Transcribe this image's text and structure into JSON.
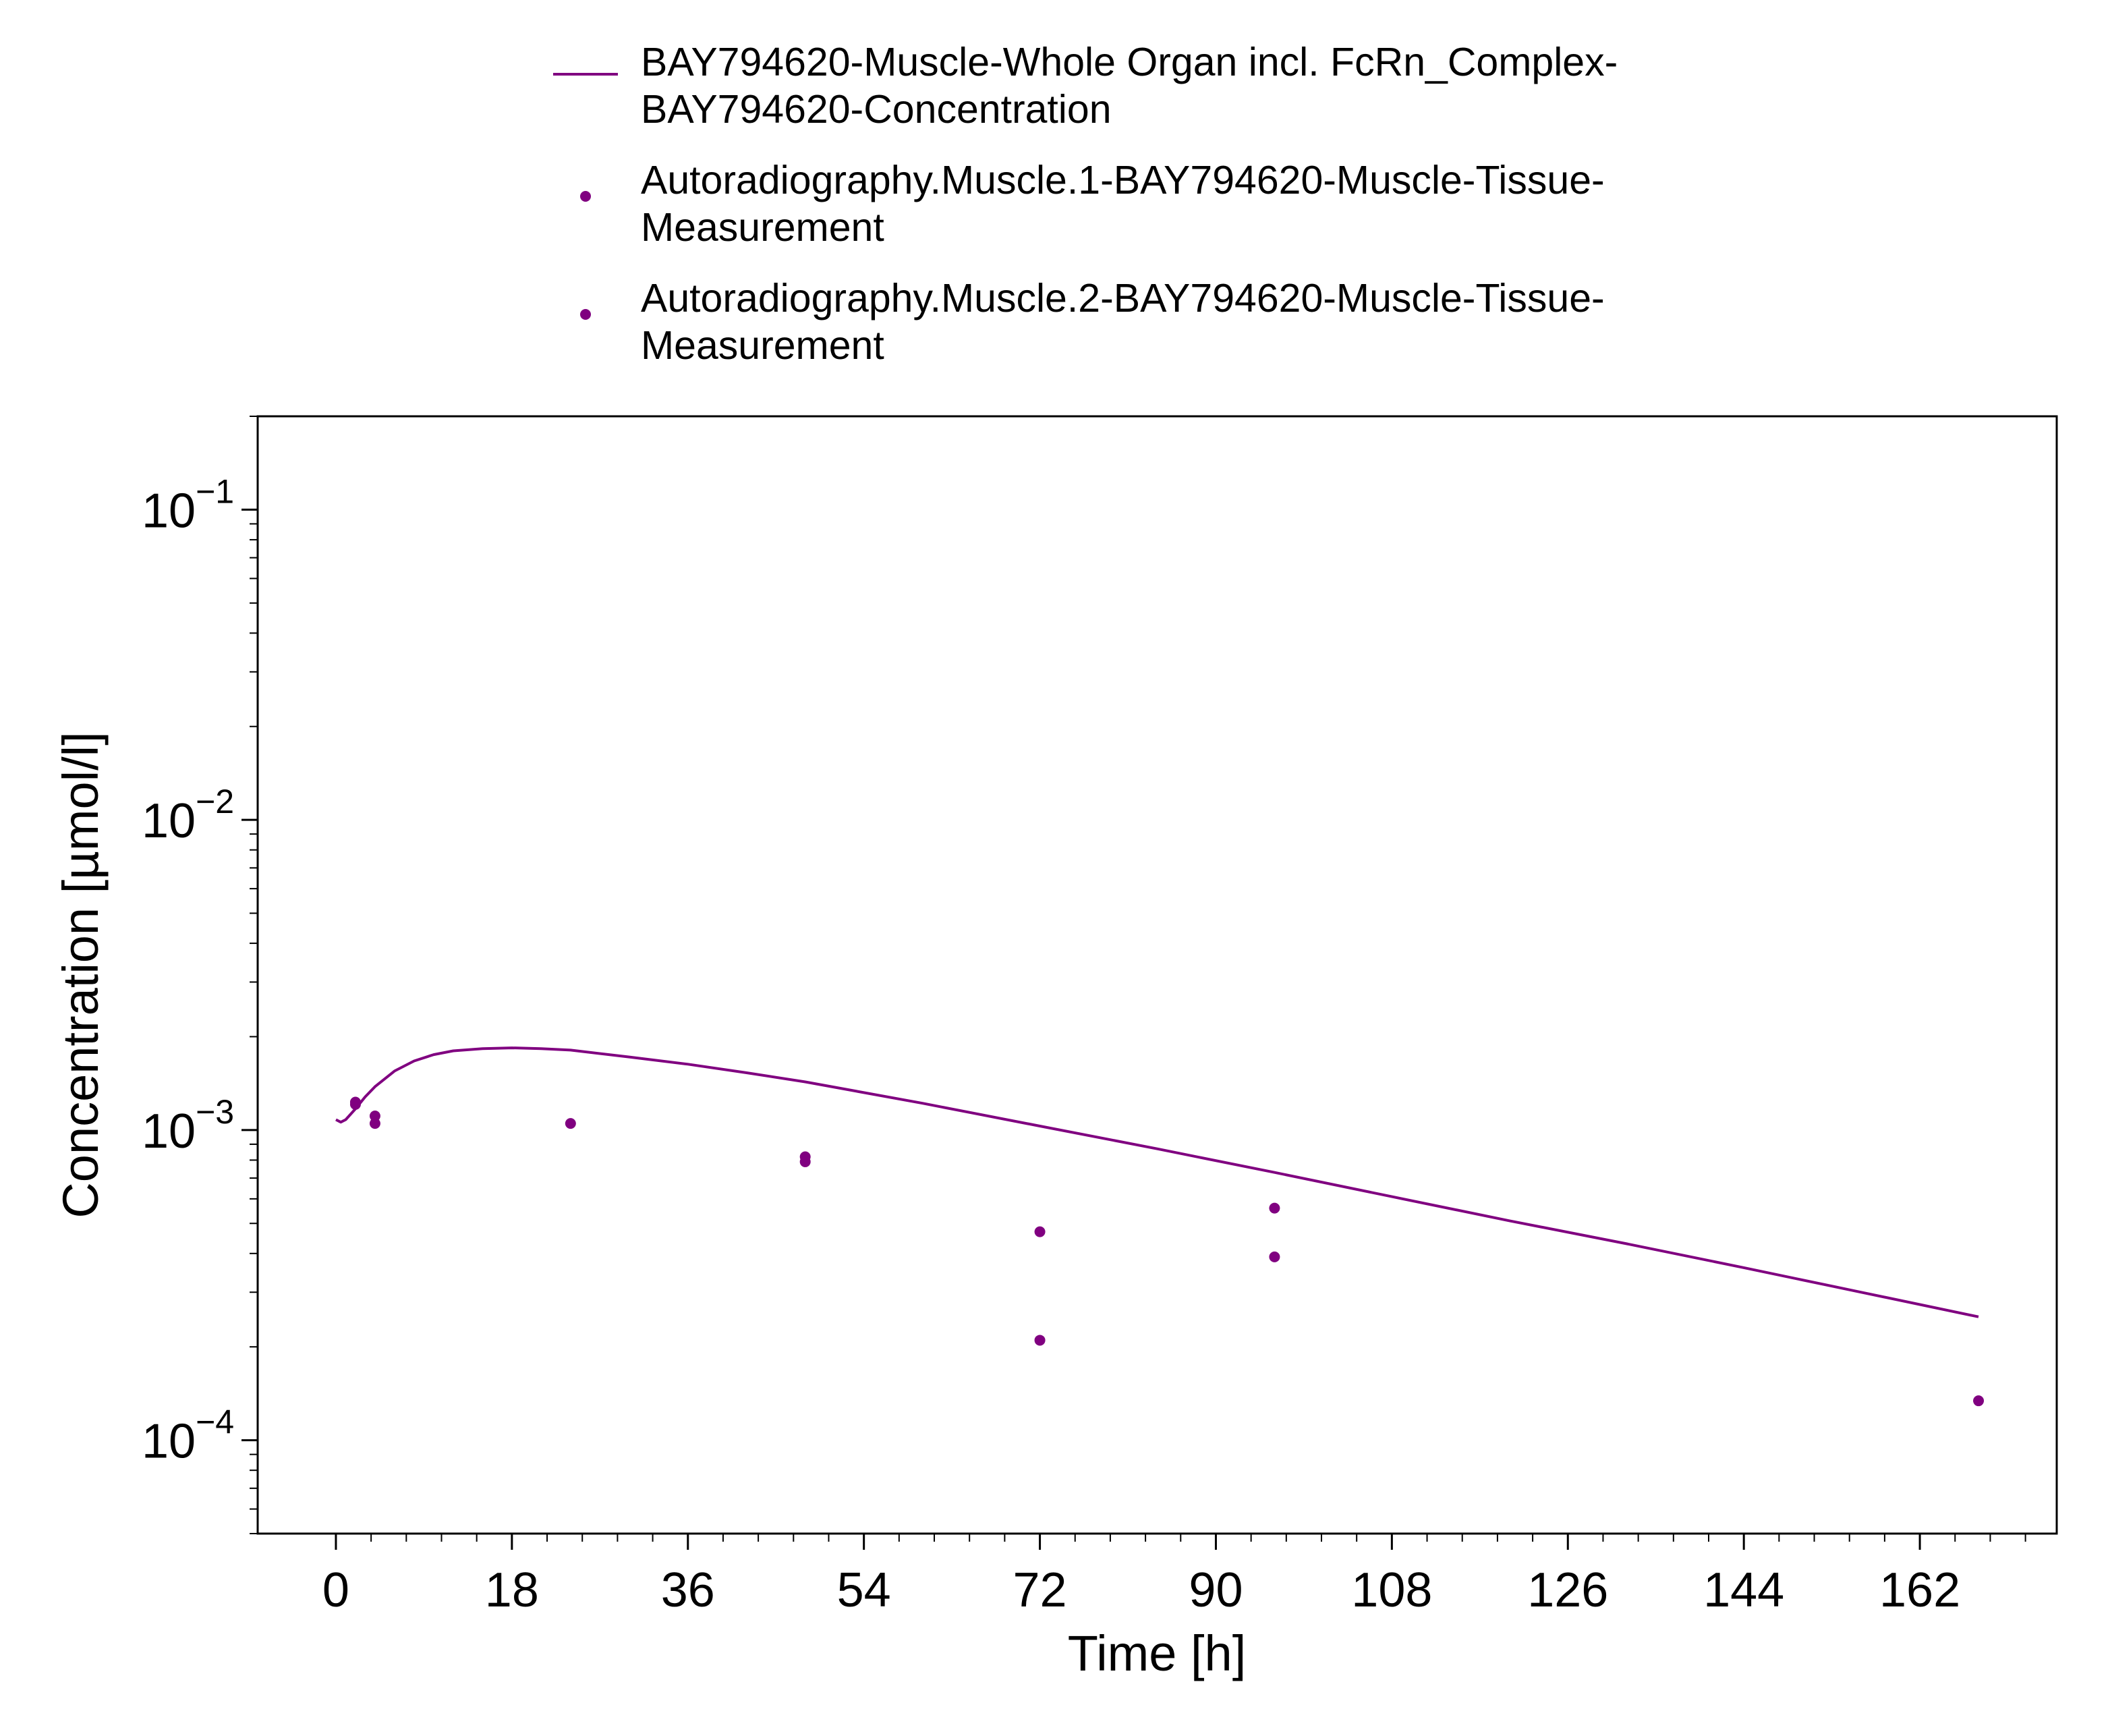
{
  "chart_data": {
    "type": "line",
    "x_axis": {
      "label": "Time [h]",
      "ticks": [
        0,
        18,
        36,
        54,
        72,
        90,
        108,
        126,
        144,
        162
      ],
      "tick_labels": [
        "0",
        "18",
        "36",
        "54",
        "72",
        "90",
        "108",
        "126",
        "144",
        "162"
      ],
      "range": [
        -8,
        176
      ],
      "minor_step": 3.6
    },
    "y_axis": {
      "label": "Concentration [µmol/l]",
      "scale": "log",
      "range": [
        5e-05,
        0.2
      ],
      "major_ticks": [
        0.0001,
        0.001,
        0.01,
        0.1
      ],
      "tick_labels": [
        {
          "base": "10",
          "exp": "−4"
        },
        {
          "base": "10",
          "exp": "−3"
        },
        {
          "base": "10",
          "exp": "−2"
        },
        {
          "base": "10",
          "exp": "−1"
        }
      ]
    },
    "grid": false,
    "legend_position": "top",
    "color": "#800080",
    "series": [
      {
        "name": "BAY794620-Muscle-Whole Organ incl. FcRn_Complex-BAY794620-Concentration",
        "legend_lines": [
          "BAY794620-Muscle-Whole Organ incl. FcRn_Complex-",
          "BAY794620-Concentration"
        ],
        "kind": "line",
        "color": "#800080",
        "x": [
          0,
          0.5,
          1,
          2,
          3,
          4,
          6,
          8,
          10,
          12,
          15,
          18,
          21,
          24,
          30,
          36,
          42,
          48,
          60,
          72,
          84,
          96,
          108,
          120,
          132,
          144,
          156,
          168
        ],
        "y": [
          0.00108,
          0.00106,
          0.00108,
          0.00117,
          0.00128,
          0.00138,
          0.00155,
          0.00167,
          0.00175,
          0.0018,
          0.00183,
          0.00184,
          0.00183,
          0.00181,
          0.00172,
          0.00163,
          0.00153,
          0.00143,
          0.00122,
          0.00103,
          0.00087,
          0.00073,
          0.00061,
          0.00051,
          0.00043,
          0.00036,
          0.0003,
          0.00025
        ]
      },
      {
        "name": "Autoradiography.Muscle.1-BAY794620-Muscle-Tissue-Measurement",
        "legend_lines": [
          "Autoradiography.Muscle.1-BAY794620-Muscle-Tissue-",
          "Measurement"
        ],
        "kind": "scatter",
        "color": "#800080",
        "x": [
          2,
          4,
          24,
          48,
          72,
          96,
          168
        ],
        "y": [
          0.00123,
          0.00111,
          0.00105,
          0.00082,
          0.00047,
          0.00056,
          0.000134
        ]
      },
      {
        "name": "Autoradiography.Muscle.2-BAY794620-Muscle-Tissue-Measurement",
        "legend_lines": [
          "Autoradiography.Muscle.2-BAY794620-Muscle-Tissue-",
          "Measurement"
        ],
        "kind": "scatter",
        "color": "#800080",
        "x": [
          2,
          4,
          48,
          72,
          96
        ],
        "y": [
          0.00121,
          0.00105,
          0.00079,
          0.00021,
          0.00039
        ]
      }
    ]
  }
}
